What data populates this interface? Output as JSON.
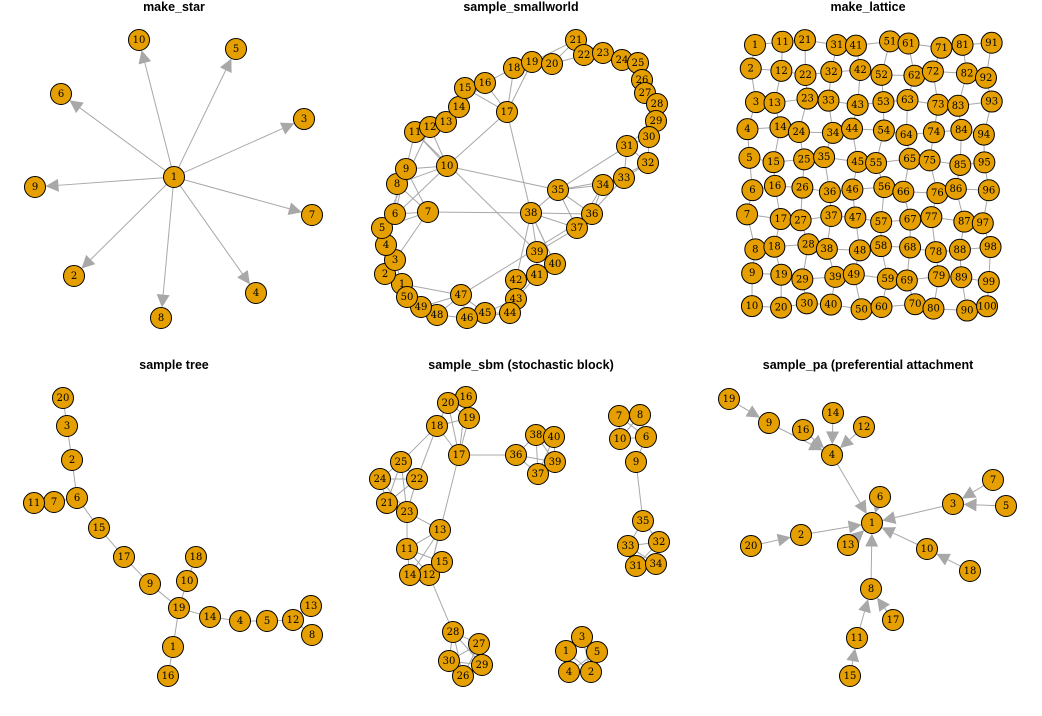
{
  "colors": {
    "node_fill": "#e69f00",
    "node_stroke": "#000000",
    "edge": "#a8a8a8",
    "background": "#ffffff"
  },
  "panels": [
    {
      "title": "make_star",
      "directed": true,
      "nodes": [
        "1",
        "2",
        "3",
        "4",
        "5",
        "6",
        "7",
        "8",
        "9",
        "10"
      ],
      "edges": [
        [
          "1",
          "2"
        ],
        [
          "1",
          "3"
        ],
        [
          "1",
          "4"
        ],
        [
          "1",
          "5"
        ],
        [
          "1",
          "6"
        ],
        [
          "1",
          "7"
        ],
        [
          "1",
          "8"
        ],
        [
          "1",
          "9"
        ],
        [
          "1",
          "10"
        ]
      ]
    },
    {
      "title": "sample_smallworld",
      "directed": false,
      "nodes": [
        "1",
        "2",
        "3",
        "4",
        "5",
        "6",
        "7",
        "8",
        "9",
        "10",
        "11",
        "12",
        "13",
        "14",
        "15",
        "16",
        "17",
        "18",
        "19",
        "20",
        "21",
        "22",
        "23",
        "24",
        "25",
        "26",
        "27",
        "28",
        "29",
        "30",
        "31",
        "32",
        "33",
        "34",
        "35",
        "36",
        "37",
        "38",
        "39",
        "40",
        "41",
        "42",
        "43",
        "44",
        "45",
        "46",
        "47",
        "48",
        "49",
        "50"
      ],
      "edges": [
        [
          "1",
          "2"
        ],
        [
          "1",
          "3"
        ],
        [
          "1",
          "50"
        ],
        [
          "1",
          "49"
        ],
        [
          "1",
          "47"
        ],
        [
          "2",
          "3"
        ],
        [
          "2",
          "4"
        ],
        [
          "2",
          "50"
        ],
        [
          "3",
          "4"
        ],
        [
          "3",
          "5"
        ],
        [
          "3",
          "7"
        ],
        [
          "4",
          "5"
        ],
        [
          "4",
          "6"
        ],
        [
          "5",
          "6"
        ],
        [
          "5",
          "7"
        ],
        [
          "5",
          "10"
        ],
        [
          "6",
          "7"
        ],
        [
          "6",
          "8"
        ],
        [
          "6",
          "9"
        ],
        [
          "7",
          "8"
        ],
        [
          "7",
          "9"
        ],
        [
          "7",
          "38"
        ],
        [
          "8",
          "9"
        ],
        [
          "8",
          "10"
        ],
        [
          "9",
          "10"
        ],
        [
          "9",
          "11"
        ],
        [
          "10",
          "11"
        ],
        [
          "10",
          "12"
        ],
        [
          "10",
          "17"
        ],
        [
          "10",
          "35"
        ],
        [
          "11",
          "12"
        ],
        [
          "11",
          "13"
        ],
        [
          "12",
          "13"
        ],
        [
          "12",
          "14"
        ],
        [
          "13",
          "14"
        ],
        [
          "13",
          "15"
        ],
        [
          "14",
          "15"
        ],
        [
          "14",
          "16"
        ],
        [
          "15",
          "16"
        ],
        [
          "15",
          "17"
        ],
        [
          "16",
          "17"
        ],
        [
          "16",
          "18"
        ],
        [
          "17",
          "18"
        ],
        [
          "17",
          "19"
        ],
        [
          "17",
          "38"
        ],
        [
          "18",
          "19"
        ],
        [
          "18",
          "20"
        ],
        [
          "19",
          "20"
        ],
        [
          "19",
          "21"
        ],
        [
          "20",
          "21"
        ],
        [
          "20",
          "22"
        ],
        [
          "21",
          "22"
        ],
        [
          "21",
          "23"
        ],
        [
          "22",
          "23"
        ],
        [
          "22",
          "24"
        ],
        [
          "23",
          "24"
        ],
        [
          "23",
          "25"
        ],
        [
          "24",
          "25"
        ],
        [
          "24",
          "26"
        ],
        [
          "25",
          "26"
        ],
        [
          "25",
          "27"
        ],
        [
          "26",
          "27"
        ],
        [
          "26",
          "28"
        ],
        [
          "27",
          "28"
        ],
        [
          "27",
          "29"
        ],
        [
          "28",
          "29"
        ],
        [
          "28",
          "30"
        ],
        [
          "29",
          "30"
        ],
        [
          "29",
          "31"
        ],
        [
          "30",
          "31"
        ],
        [
          "30",
          "32"
        ],
        [
          "31",
          "32"
        ],
        [
          "31",
          "33"
        ],
        [
          "31",
          "35"
        ],
        [
          "32",
          "33"
        ],
        [
          "32",
          "34"
        ],
        [
          "33",
          "34"
        ],
        [
          "33",
          "35"
        ],
        [
          "34",
          "35"
        ],
        [
          "34",
          "36"
        ],
        [
          "35",
          "36"
        ],
        [
          "35",
          "37"
        ],
        [
          "35",
          "38"
        ],
        [
          "36",
          "37"
        ],
        [
          "36",
          "38"
        ],
        [
          "37",
          "38"
        ],
        [
          "37",
          "39"
        ],
        [
          "38",
          "39"
        ],
        [
          "38",
          "40"
        ],
        [
          "38",
          "42"
        ],
        [
          "39",
          "40"
        ],
        [
          "39",
          "41"
        ],
        [
          "40",
          "41"
        ],
        [
          "40",
          "42"
        ],
        [
          "41",
          "42"
        ],
        [
          "41",
          "43"
        ],
        [
          "42",
          "43"
        ],
        [
          "42",
          "44"
        ],
        [
          "43",
          "44"
        ],
        [
          "43",
          "45"
        ],
        [
          "44",
          "45"
        ],
        [
          "44",
          "46"
        ],
        [
          "45",
          "46"
        ],
        [
          "45",
          "47"
        ],
        [
          "46",
          "47"
        ],
        [
          "46",
          "48"
        ],
        [
          "47",
          "48"
        ],
        [
          "47",
          "49"
        ],
        [
          "48",
          "49"
        ],
        [
          "48",
          "50"
        ],
        [
          "49",
          "50"
        ],
        [
          "36",
          "47"
        ],
        [
          "33",
          "37"
        ],
        [
          "34",
          "37"
        ],
        [
          "39",
          "11"
        ],
        [
          "40",
          "38"
        ],
        [
          "12",
          "5"
        ]
      ]
    },
    {
      "title": "make_lattice",
      "directed": false,
      "lattice": {
        "rows": 10,
        "cols": 10
      }
    },
    {
      "title": "sample tree",
      "directed": false,
      "nodes": [
        "1",
        "2",
        "3",
        "4",
        "5",
        "6",
        "7",
        "8",
        "9",
        "10",
        "11",
        "12",
        "13",
        "14",
        "15",
        "16",
        "17",
        "18",
        "19",
        "20"
      ],
      "edges": [
        [
          "1",
          "16"
        ],
        [
          "1",
          "19"
        ],
        [
          "19",
          "10"
        ],
        [
          "19",
          "9"
        ],
        [
          "19",
          "14"
        ],
        [
          "10",
          "18"
        ],
        [
          "9",
          "17"
        ],
        [
          "17",
          "15"
        ],
        [
          "15",
          "6"
        ],
        [
          "6",
          "7"
        ],
        [
          "6",
          "2"
        ],
        [
          "7",
          "11"
        ],
        [
          "2",
          "3"
        ],
        [
          "3",
          "20"
        ],
        [
          "14",
          "4"
        ],
        [
          "4",
          "5"
        ],
        [
          "5",
          "12"
        ],
        [
          "12",
          "13"
        ],
        [
          "12",
          "8"
        ]
      ]
    },
    {
      "title": "sample_sbm (stochastic block)",
      "directed": false,
      "nodes": [
        "1",
        "2",
        "3",
        "4",
        "5",
        "6",
        "7",
        "8",
        "9",
        "10",
        "11",
        "12",
        "13",
        "14",
        "15",
        "16",
        "17",
        "18",
        "19",
        "20",
        "21",
        "22",
        "23",
        "24",
        "25",
        "26",
        "27",
        "28",
        "29",
        "30",
        "31",
        "32",
        "33",
        "34",
        "35",
        "36",
        "37",
        "38",
        "39",
        "40"
      ],
      "edges": [
        [
          "1",
          "2"
        ],
        [
          "1",
          "3"
        ],
        [
          "1",
          "4"
        ],
        [
          "2",
          "3"
        ],
        [
          "2",
          "4"
        ],
        [
          "2",
          "5"
        ],
        [
          "3",
          "5"
        ],
        [
          "4",
          "5"
        ],
        [
          "6",
          "7"
        ],
        [
          "6",
          "8"
        ],
        [
          "6",
          "10"
        ],
        [
          "7",
          "8"
        ],
        [
          "7",
          "10"
        ],
        [
          "8",
          "10"
        ],
        [
          "6",
          "9"
        ],
        [
          "9",
          "35"
        ],
        [
          "11",
          "12"
        ],
        [
          "11",
          "13"
        ],
        [
          "11",
          "14"
        ],
        [
          "11",
          "15"
        ],
        [
          "12",
          "13"
        ],
        [
          "12",
          "14"
        ],
        [
          "12",
          "15"
        ],
        [
          "13",
          "14"
        ],
        [
          "14",
          "15"
        ],
        [
          "13",
          "23"
        ],
        [
          "12",
          "17"
        ],
        [
          "11",
          "23"
        ],
        [
          "12",
          "28"
        ],
        [
          "16",
          "17"
        ],
        [
          "16",
          "19"
        ],
        [
          "17",
          "18"
        ],
        [
          "17",
          "19"
        ],
        [
          "17",
          "20"
        ],
        [
          "18",
          "19"
        ],
        [
          "18",
          "20"
        ],
        [
          "19",
          "20"
        ],
        [
          "16",
          "20"
        ],
        [
          "17",
          "36"
        ],
        [
          "18",
          "22"
        ],
        [
          "21",
          "22"
        ],
        [
          "21",
          "23"
        ],
        [
          "21",
          "24"
        ],
        [
          "21",
          "25"
        ],
        [
          "22",
          "23"
        ],
        [
          "22",
          "24"
        ],
        [
          "22",
          "25"
        ],
        [
          "23",
          "24"
        ],
        [
          "23",
          "25"
        ],
        [
          "24",
          "25"
        ],
        [
          "25",
          "18"
        ],
        [
          "26",
          "27"
        ],
        [
          "26",
          "28"
        ],
        [
          "26",
          "29"
        ],
        [
          "26",
          "30"
        ],
        [
          "27",
          "28"
        ],
        [
          "27",
          "29"
        ],
        [
          "27",
          "30"
        ],
        [
          "28",
          "29"
        ],
        [
          "28",
          "30"
        ],
        [
          "29",
          "30"
        ],
        [
          "31",
          "32"
        ],
        [
          "31",
          "33"
        ],
        [
          "31",
          "34"
        ],
        [
          "32",
          "33"
        ],
        [
          "32",
          "34"
        ],
        [
          "33",
          "34"
        ],
        [
          "32",
          "35"
        ],
        [
          "33",
          "35"
        ],
        [
          "36",
          "37"
        ],
        [
          "36",
          "38"
        ],
        [
          "36",
          "39"
        ],
        [
          "37",
          "38"
        ],
        [
          "37",
          "39"
        ],
        [
          "37",
          "40"
        ],
        [
          "38",
          "39"
        ],
        [
          "38",
          "40"
        ],
        [
          "39",
          "40"
        ]
      ]
    },
    {
      "title": "sample_pa (preferential attachment",
      "directed": true,
      "nodes": [
        "1",
        "2",
        "3",
        "4",
        "5",
        "6",
        "7",
        "8",
        "9",
        "10",
        "11",
        "12",
        "13",
        "14",
        "15",
        "16",
        "17",
        "18",
        "19",
        "20"
      ],
      "edges": [
        [
          "2",
          "1"
        ],
        [
          "3",
          "1"
        ],
        [
          "4",
          "1"
        ],
        [
          "5",
          "3"
        ],
        [
          "6",
          "1"
        ],
        [
          "7",
          "3"
        ],
        [
          "8",
          "1"
        ],
        [
          "9",
          "4"
        ],
        [
          "10",
          "1"
        ],
        [
          "11",
          "8"
        ],
        [
          "12",
          "4"
        ],
        [
          "13",
          "1"
        ],
        [
          "14",
          "4"
        ],
        [
          "15",
          "11"
        ],
        [
          "16",
          "4"
        ],
        [
          "17",
          "8"
        ],
        [
          "18",
          "10"
        ],
        [
          "19",
          "9"
        ],
        [
          "20",
          "2"
        ]
      ]
    }
  ]
}
